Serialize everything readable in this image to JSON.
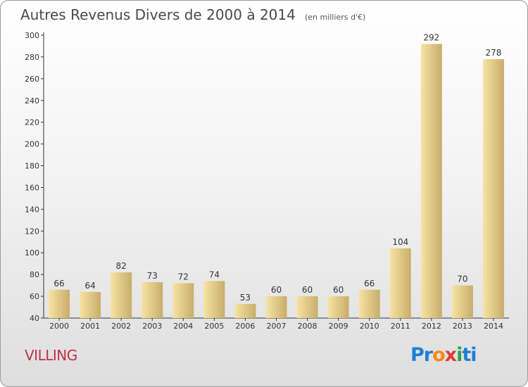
{
  "header": {
    "title": "Autres Revenus Divers de 2000 à 2014",
    "unit": "(en milliers d'€)"
  },
  "footer": {
    "commune": "VILLING",
    "logo_text": "Proxiti"
  },
  "colors": {
    "bar_light": "#f7e3a4",
    "bar_dark": "#c8ad6a",
    "axis": "#333333",
    "commune_text": "#c0304a"
  },
  "chart_data": {
    "type": "bar",
    "title": "Autres Revenus Divers de 2000 à 2014",
    "subtitle": "(en milliers d'€)",
    "xlabel": "",
    "ylabel": "",
    "ylim": [
      40,
      300
    ],
    "yticks": [
      40,
      60,
      80,
      100,
      120,
      140,
      160,
      180,
      200,
      220,
      240,
      260,
      280,
      300
    ],
    "grid": false,
    "categories": [
      "2000",
      "2001",
      "2002",
      "2003",
      "2004",
      "2005",
      "2006",
      "2007",
      "2008",
      "2009",
      "2010",
      "2011",
      "2012",
      "2013",
      "2014"
    ],
    "values": [
      66,
      64,
      82,
      73,
      72,
      74,
      53,
      60,
      60,
      60,
      66,
      104,
      292,
      70,
      278
    ]
  }
}
